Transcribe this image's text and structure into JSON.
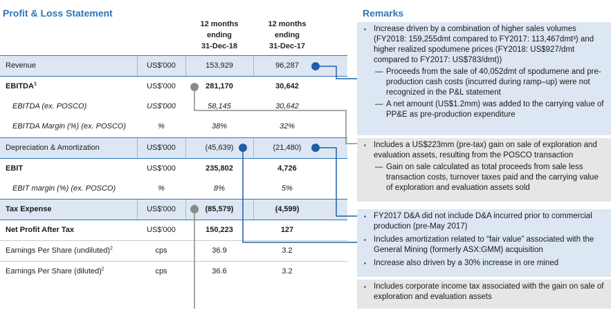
{
  "left_title": "Profit & Loss Statement",
  "right_title": "Remarks",
  "columns": {
    "h18": [
      "12 months",
      "ending",
      "31-Dec-18"
    ],
    "h17": [
      "12 months",
      "ending",
      "31-Dec-17"
    ]
  },
  "rows": [
    {
      "label": "Revenue",
      "sup": "",
      "unit": "US$'000",
      "v18": "153,929",
      "v17": "96,287"
    },
    {
      "label": "EBITDA",
      "sup": "1",
      "unit": "US$'000",
      "v18": "281,170",
      "v17": "30,642"
    },
    {
      "label": "EBITDA (ex. POSCO)",
      "sup": "",
      "unit": "US$'000",
      "v18": "58,145",
      "v17": "30,642"
    },
    {
      "label": "EBITDA Margin (%) (ex. POSCO)",
      "sup": "",
      "unit": "%",
      "v18": "38%",
      "v17": "32%"
    },
    {
      "label": "Depreciation & Amortization",
      "sup": "",
      "unit": "US$'000",
      "v18": "(45,639)",
      "v17": "(21,480)"
    },
    {
      "label": "EBIT",
      "sup": "",
      "unit": "US$'000",
      "v18": "235,802",
      "v17": "4,726"
    },
    {
      "label": "EBIT margin (%) (ex. POSCO)",
      "sup": "",
      "unit": "%",
      "v18": "8%",
      "v17": "5%"
    },
    {
      "label": "Tax Expense",
      "sup": "",
      "unit": "US$'000",
      "v18": "(85,579)",
      "v17": "(4,599)"
    },
    {
      "label": "Net Profit After Tax",
      "sup": "",
      "unit": "US$'000",
      "v18": "150,223",
      "v17": "127"
    },
    {
      "label": "Earnings Per Share (undiluted)",
      "sup": "2",
      "unit": "cps",
      "v18": "36.9",
      "v17": "3.2"
    },
    {
      "label": "Earnings Per Share (diluted)",
      "sup": "2",
      "unit": "cps",
      "v18": "36.6",
      "v17": "3.2"
    }
  ],
  "remarks": {
    "revenue": {
      "bullet": "Increase driven by a combination of higher sales volumes (FY2018: 159,255dmt compared to FY2017: 113,467dmt³) and higher realized spodumene prices (FY2018: US$927/dmt compared to FY2017: US$783/dmt))",
      "subs": [
        "Proceeds from the sale of 40,052dmt of spodumene and pre-production cash costs (incurred during ramp–up) were not recognized in the P&L statement",
        "A net amount (US$1.2mm) was added to the carrying value of PP&E as pre-production expenditure"
      ]
    },
    "ebitda": {
      "bullet": "Includes a US$223mm (pre-tax) gain on sale of exploration and evaluation assets, resulting from the POSCO transaction",
      "subs": [
        "Gain on sale calculated as total proceeds from sale less transaction costs, turnover taxes paid and the carrying value of exploration and evaluation assets sold"
      ]
    },
    "da": {
      "bullets": [
        "FY2017 D&A did not include D&A incurred prior to commercial production (pre-May 2017)",
        "Includes amortization related to “fair value” associated with the General Mining (formerly ASX:GMM) acquisition",
        "Increase also driven by a 30% increase in ore mined"
      ]
    },
    "tax": {
      "bullet": "Includes corporate income tax associated with the gain on sale of exploration and evaluation assets"
    }
  },
  "colors": {
    "accent": "#2e75b6",
    "connector_blue": "#1f5fa8",
    "connector_grey": "#8a8a8a",
    "shade": "#dde7f3",
    "remark_grey": "#e6e6e6"
  }
}
